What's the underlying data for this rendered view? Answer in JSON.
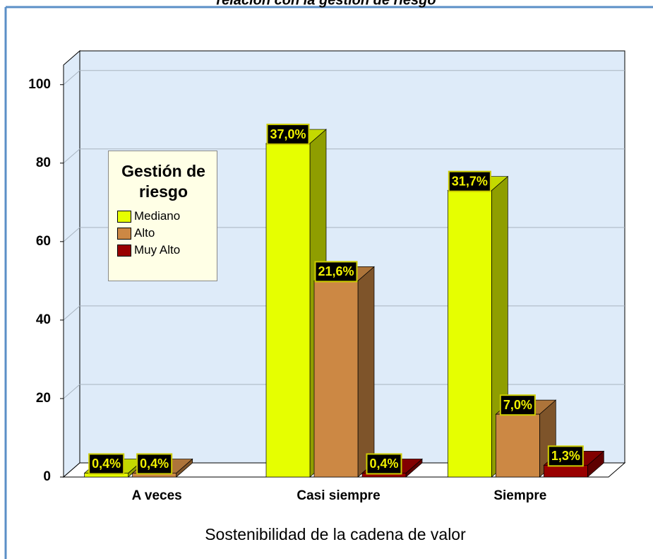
{
  "chart_data": {
    "type": "bar3d",
    "title": "relación con la gestión de riesgo",
    "x_label": "Sostenibilidad de la cadena de valor",
    "legend_title": "Gestión de riesgo",
    "categories": [
      "A veces",
      "Casi siempre",
      "Siempre"
    ],
    "series": [
      {
        "name": "Mediano",
        "color": "#e6ff00",
        "values": [
          1,
          85,
          73
        ],
        "value_labels": [
          "0,4%",
          "37,0%",
          "31,7%"
        ]
      },
      {
        "name": "Alto",
        "color": "#cc8844",
        "values": [
          1,
          50,
          16
        ],
        "value_labels": [
          "0,4%",
          "21,6%",
          "7,0%"
        ]
      },
      {
        "name": "Muy Alto",
        "color": "#990000",
        "values": [
          null,
          1,
          3
        ],
        "value_labels": [
          null,
          "0,4%",
          "1,3%"
        ]
      }
    ],
    "ylim": [
      0,
      105
    ],
    "yticks": [
      0,
      20,
      40,
      60,
      80,
      100
    ],
    "grid": true,
    "legend": "upper left"
  }
}
